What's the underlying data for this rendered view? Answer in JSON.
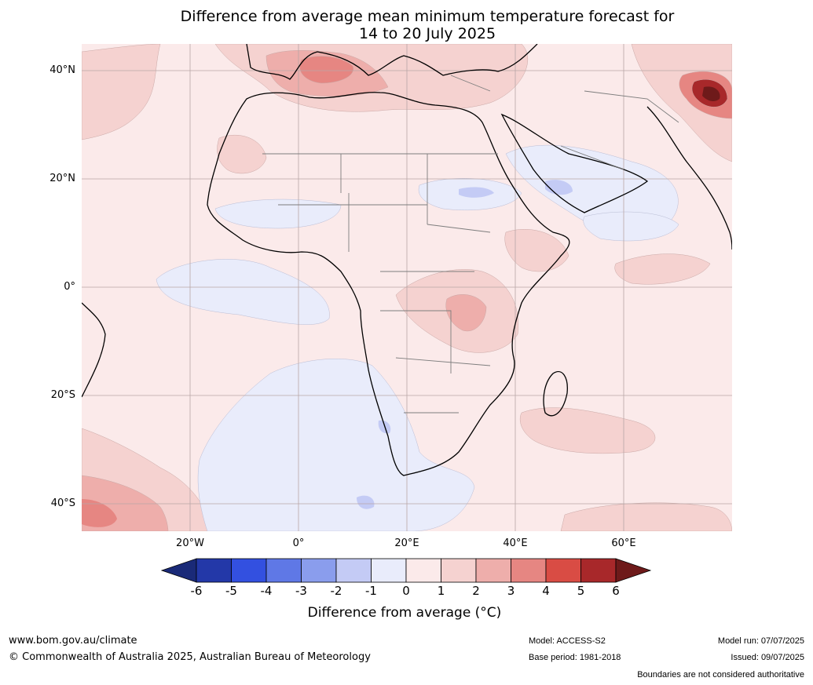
{
  "title": {
    "line1": "Difference from average mean minimum temperature forecast for",
    "line2": "14 to 20 July 2025"
  },
  "axes": {
    "lat_labels": [
      "40°N",
      "20°N",
      "0°",
      "20°S",
      "40°S"
    ],
    "lon_labels": [
      "20°W",
      "0°",
      "20°E",
      "40°E",
      "60°E"
    ]
  },
  "colorbar": {
    "title": "Difference from average (°C)",
    "ticks": [
      "-6",
      "-5",
      "-4",
      "-3",
      "-2",
      "-1",
      "0",
      "1",
      "2",
      "3",
      "4",
      "5",
      "6"
    ],
    "colors": [
      "#1a2a78",
      "#2338a8",
      "#3350e0",
      "#5f78e6",
      "#8a9ded",
      "#c4cbf5",
      "#e9ecfb",
      "#fbeaea",
      "#f5d2d0",
      "#eeaeab",
      "#e68682",
      "#d94c44",
      "#a8282a",
      "#6e1a1a"
    ]
  },
  "map_colors": {
    "ocean_base": "#fbeaea",
    "cool": "#e9ecfb",
    "cool_strong": "#c4cbf5",
    "warm_1": "#f5d2d0",
    "warm_2": "#eeaeab",
    "warm_3": "#e68682",
    "warm_4": "#d94c44",
    "warm_5": "#a8282a",
    "warm_6": "#6e1a1a"
  },
  "footer": {
    "website": "www.bom.gov.au/climate",
    "copyright": "© Commonwealth of Australia 2025, Australian Bureau of Meteorology",
    "model": "Model: ACCESS-S2",
    "base_period": "Base period: 1981-2018",
    "model_run": "Model run: 07/07/2025",
    "issued": "Issued: 09/07/2025",
    "disclaimer": "Boundaries are not considered authoritative"
  }
}
